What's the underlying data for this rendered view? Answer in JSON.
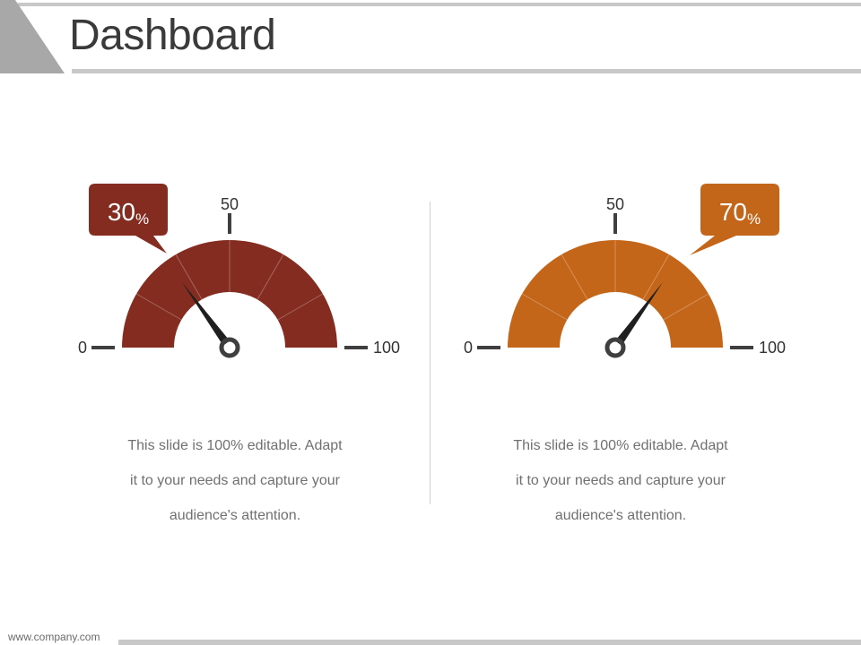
{
  "header": {
    "title": "Dashboard"
  },
  "gauges": [
    {
      "value": 30,
      "value_text": "30",
      "unit": "%",
      "scale": {
        "min_label": "0",
        "mid_label": "50",
        "max_label": "100"
      },
      "color": "#842c20",
      "description": [
        "This slide is 100% editable. Adapt",
        "it to your needs and capture your",
        "audience's attention."
      ]
    },
    {
      "value": 70,
      "value_text": "70",
      "unit": "%",
      "scale": {
        "min_label": "0",
        "mid_label": "50",
        "max_label": "100"
      },
      "color": "#c4661a",
      "description": [
        "This slide is 100% editable. Adapt",
        "it to your needs and capture your",
        "audience's attention."
      ]
    }
  ],
  "footer": {
    "url": "www.company.com"
  }
}
